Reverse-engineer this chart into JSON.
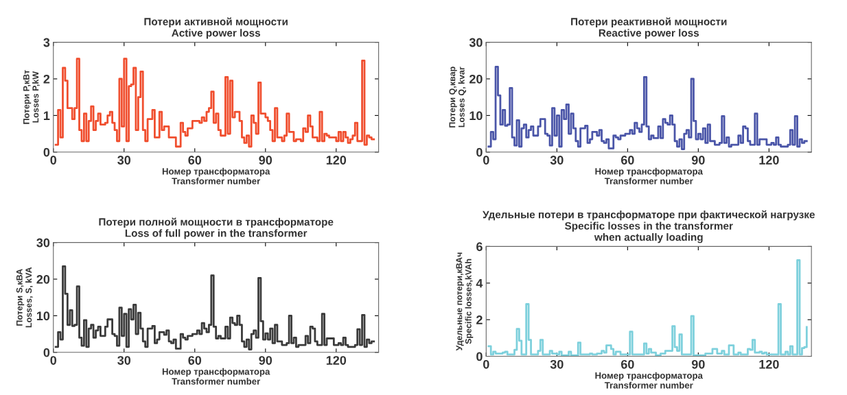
{
  "chart_data": [
    {
      "type": "step",
      "title": "Потери активной мощности\nActive power loss",
      "xlabel": "Номер трансформатора\nTransformer number",
      "ylabel": "Потери P,кВт\nLosses P,kW",
      "xlim": [
        0,
        138
      ],
      "ylim": [
        0,
        3
      ],
      "xticks": [
        0,
        30,
        60,
        90,
        120
      ],
      "yticks": [
        0,
        1,
        2,
        3
      ],
      "grid": false,
      "x": [
        1,
        2,
        3,
        4,
        5,
        6,
        8,
        9,
        10,
        11,
        12,
        13,
        14,
        15,
        16,
        17,
        18,
        19,
        20,
        22,
        23,
        24,
        25,
        26,
        27,
        28,
        29,
        30,
        31,
        32,
        33,
        34,
        35,
        36,
        37,
        38,
        39,
        40,
        42,
        43,
        45,
        46,
        47,
        49,
        52,
        54,
        55,
        56,
        57,
        59,
        62,
        63,
        64,
        65,
        66,
        67,
        68,
        69,
        70,
        71,
        73,
        74,
        75,
        76,
        77,
        79,
        80,
        81,
        82,
        83,
        84,
        85,
        86,
        87,
        88,
        90,
        91,
        92,
        93,
        94,
        95,
        97,
        98,
        99,
        100,
        102,
        103,
        105,
        106,
        107,
        108,
        109,
        110,
        112,
        113,
        114,
        115,
        116,
        117,
        120,
        121,
        122,
        123,
        124,
        125,
        126,
        127,
        128,
        129,
        131,
        132,
        133,
        134,
        135,
        136
      ],
      "series": [
        {
          "color": "#f04e2e",
          "values": [
            0.2,
            1.15,
            0.4,
            2.3,
            1.95,
            1.2,
            0.9,
            1.2,
            2.55,
            0.6,
            0.3,
            1.05,
            0.3,
            0.85,
            1.25,
            0.6,
            0.85,
            1.05,
            0.75,
            0.8,
            1.0,
            1.1,
            0.8,
            0.6,
            0.3,
            2.0,
            0.7,
            2.55,
            0.3,
            1.8,
            1.85,
            2.3,
            0.6,
            1.5,
            2.2,
            0.6,
            0.3,
            0.9,
            1.15,
            0.4,
            1.1,
            0.6,
            0.7,
            0.4,
            0.15,
            0.8,
            0.55,
            0.45,
            0.65,
            0.85,
            0.8,
            0.95,
            0.85,
            1.1,
            1.2,
            1.65,
            0.8,
            1.05,
            0.6,
            0.45,
            2.05,
            0.5,
            1.95,
            0.95,
            1.1,
            0.85,
            0.4,
            0.25,
            0.45,
            0.15,
            1.0,
            0.8,
            0.5,
            1.9,
            1.05,
            0.95,
            0.85,
            0.6,
            0.3,
            1.2,
            0.4,
            0.3,
            0.45,
            1.05,
            0.55,
            0.3,
            0.35,
            0.3,
            0.65,
            0.55,
            1.0,
            0.7,
            0.4,
            0.3,
            1.1,
            0.3,
            0.5,
            0.45,
            0.4,
            0.3,
            0.55,
            0.3,
            0.55,
            0.4,
            0.25,
            0.35,
            0.45,
            0.8,
            0.3,
            2.5,
            0.2,
            0.45,
            0.4,
            0.35,
            0.35
          ]
        }
      ]
    },
    {
      "type": "step",
      "title": "Потери реактивной мощности\nReactive power loss",
      "xlabel": "Номер трансформатора\nTransformer number",
      "ylabel": "Потери Q,квар\nLosses Q, kvar",
      "xlim": [
        0,
        138
      ],
      "ylim": [
        0,
        30
      ],
      "xticks": [
        0,
        30,
        60,
        90,
        120
      ],
      "yticks": [
        0,
        10,
        20,
        30
      ],
      "grid": false,
      "x": [
        1,
        2,
        3,
        4,
        5,
        6,
        7,
        8,
        9,
        10,
        11,
        12,
        13,
        14,
        15,
        16,
        17,
        18,
        19,
        20,
        22,
        23,
        25,
        26,
        27,
        28,
        29,
        30,
        31,
        32,
        33,
        34,
        35,
        36,
        37,
        38,
        39,
        40,
        42,
        43,
        44,
        45,
        47,
        48,
        49,
        50,
        51,
        52,
        54,
        55,
        56,
        57,
        59,
        61,
        62,
        63,
        64,
        65,
        66,
        67,
        68,
        69,
        70,
        71,
        73,
        74,
        75,
        76,
        77,
        78,
        79,
        80,
        81,
        82,
        83,
        84,
        85,
        86,
        87,
        88,
        89,
        90,
        91,
        92,
        93,
        94,
        95,
        97,
        99,
        100,
        101,
        102,
        103,
        104,
        106,
        107,
        108,
        109,
        110,
        111,
        112,
        114,
        115,
        116,
        119,
        121,
        122,
        123,
        124,
        125,
        128,
        129,
        130,
        131,
        132,
        133,
        134,
        135,
        136
      ],
      "series": [
        {
          "color": "#4a55a8",
          "values": [
            1.5,
            5.5,
            3.5,
            23.3,
            15.5,
            7.5,
            11.5,
            7.2,
            7.5,
            17.5,
            4.0,
            1.8,
            8.7,
            1.5,
            6.5,
            7.5,
            4.0,
            6.0,
            7.0,
            4.5,
            7.0,
            9.0,
            5.0,
            4.5,
            1.8,
            12.0,
            4.5,
            10.0,
            1.5,
            11.5,
            9.0,
            13.0,
            5.0,
            10.5,
            6.5,
            3.0,
            1.5,
            6.5,
            7.2,
            2.5,
            3.5,
            5.5,
            4.5,
            6.0,
            3.0,
            2.5,
            3.5,
            1.0,
            4.5,
            4.0,
            3.5,
            4.5,
            5.0,
            6.0,
            5.0,
            8.0,
            6.5,
            5.5,
            7.5,
            20.5,
            7.0,
            3.5,
            4.5,
            3.8,
            7.0,
            3.8,
            9.0,
            8.0,
            7.5,
            10.0,
            7.5,
            3.0,
            1.5,
            3.5,
            0.8,
            5.0,
            6.0,
            4.0,
            20.0,
            8.5,
            3.5,
            5.0,
            3.5,
            6.5,
            2.5,
            7.5,
            3.0,
            2.0,
            2.5,
            9.8,
            2.5,
            4.0,
            1.5,
            2.0,
            2.0,
            4.5,
            2.5,
            7.0,
            6.5,
            3.0,
            2.0,
            10.5,
            2.0,
            3.5,
            2.0,
            2.5,
            2.0,
            4.0,
            2.0,
            1.5,
            2.0,
            6.0,
            2.0,
            9.8,
            1.5,
            3.5,
            2.5,
            3.0,
            3.0
          ]
        }
      ]
    },
    {
      "type": "step",
      "title": "Потери полной мощности в трансформаторе\nLoss of full power in the transformer",
      "xlabel": "Номер трансформатора\nTransformer number",
      "ylabel": "Потери S,кВА\nLosses, S, kVA",
      "xlim": [
        0,
        138
      ],
      "ylim": [
        0,
        30
      ],
      "xticks": [
        0,
        30,
        60,
        90,
        120
      ],
      "yticks": [
        0,
        10,
        20,
        30
      ],
      "grid": false,
      "x": [
        1,
        2,
        3,
        4,
        5,
        6,
        7,
        8,
        9,
        10,
        11,
        12,
        13,
        14,
        15,
        16,
        17,
        18,
        19,
        20,
        22,
        23,
        25,
        26,
        27,
        28,
        29,
        30,
        31,
        32,
        33,
        34,
        35,
        36,
        37,
        38,
        39,
        40,
        42,
        43,
        44,
        45,
        47,
        48,
        49,
        50,
        51,
        52,
        54,
        55,
        56,
        57,
        59,
        61,
        62,
        63,
        64,
        65,
        66,
        67,
        68,
        69,
        70,
        71,
        73,
        74,
        75,
        76,
        77,
        78,
        79,
        80,
        81,
        82,
        83,
        84,
        85,
        86,
        87,
        88,
        89,
        90,
        91,
        92,
        93,
        94,
        95,
        97,
        99,
        100,
        101,
        102,
        103,
        104,
        106,
        107,
        108,
        109,
        110,
        111,
        112,
        114,
        115,
        116,
        119,
        121,
        122,
        123,
        124,
        125,
        128,
        129,
        130,
        131,
        132,
        133,
        134,
        135,
        136
      ],
      "series": [
        {
          "color": "#3a3a3a",
          "values": [
            1.5,
            5.5,
            3.5,
            23.5,
            16.0,
            7.5,
            11.5,
            7.2,
            7.5,
            18.0,
            4.0,
            1.8,
            8.8,
            1.5,
            6.5,
            7.5,
            4.0,
            6.0,
            7.0,
            4.5,
            7.0,
            9.0,
            5.0,
            4.5,
            1.8,
            12.2,
            4.5,
            10.5,
            1.5,
            11.8,
            9.0,
            13.0,
            5.0,
            10.8,
            6.5,
            3.0,
            1.5,
            6.5,
            7.2,
            2.5,
            3.5,
            5.5,
            4.8,
            6.0,
            3.0,
            2.5,
            3.5,
            1.0,
            5.0,
            4.0,
            3.5,
            4.5,
            5.0,
            6.0,
            5.0,
            8.0,
            6.5,
            5.5,
            7.5,
            21.0,
            7.0,
            3.8,
            4.5,
            3.8,
            7.0,
            3.8,
            9.5,
            8.0,
            7.5,
            10.0,
            7.5,
            3.0,
            1.5,
            3.5,
            0.8,
            5.0,
            6.0,
            4.0,
            20.3,
            8.5,
            3.5,
            5.2,
            3.5,
            6.5,
            2.5,
            7.5,
            3.0,
            2.0,
            2.5,
            10.0,
            2.5,
            4.0,
            1.5,
            2.0,
            2.0,
            4.5,
            2.5,
            7.0,
            6.5,
            3.0,
            2.0,
            10.5,
            2.0,
            3.8,
            2.0,
            2.5,
            2.0,
            4.0,
            2.0,
            1.5,
            2.0,
            6.3,
            2.0,
            10.2,
            1.5,
            3.5,
            2.5,
            3.0,
            3.0
          ]
        }
      ]
    },
    {
      "type": "step",
      "title": "Удельные потери в трансформаторе при фактической нагрузке\nSpecific losses in the transformer\nwhen actually loading",
      "xlabel": "Номер трансформатора\nTransformer number",
      "ylabel": "Удельные потери,кВАч\nSpecific losses,kVAh",
      "xlim": [
        0,
        138
      ],
      "ylim": [
        0,
        6
      ],
      "xticks": [
        0,
        30,
        60,
        90,
        120
      ],
      "yticks": [
        0,
        2,
        4,
        6
      ],
      "grid": false,
      "x": [
        1,
        2,
        3,
        4,
        7,
        8,
        9,
        12,
        13,
        14,
        15,
        17,
        18,
        19,
        22,
        23,
        24,
        27,
        28,
        30,
        31,
        32,
        35,
        36,
        39,
        40,
        44,
        45,
        47,
        49,
        50,
        51,
        53,
        54,
        55,
        57,
        61,
        62,
        67,
        68,
        69,
        70,
        72,
        74,
        76,
        78,
        79,
        80,
        81,
        82,
        83,
        87,
        88,
        93,
        96,
        98,
        100,
        101,
        103,
        105,
        107,
        108,
        111,
        112,
        113,
        114,
        116,
        117,
        118,
        119,
        124,
        125,
        127,
        128,
        129,
        130,
        132,
        133,
        134,
        135,
        136
      ],
      "series": [
        {
          "color": "#7dd0dc",
          "values": [
            0.55,
            0.1,
            0.25,
            0.15,
            0.2,
            0.25,
            0.1,
            0.35,
            1.5,
            0.85,
            0.1,
            2.85,
            0.9,
            0.1,
            0.3,
            0.9,
            0.1,
            0.3,
            0.15,
            0.1,
            0.25,
            0.05,
            0.25,
            0.05,
            0.75,
            0.1,
            0.15,
            0.1,
            0.15,
            0.3,
            0.2,
            0.6,
            0.4,
            0.1,
            0.25,
            0.1,
            1.35,
            0.1,
            0.7,
            0.15,
            0.4,
            0.2,
            0.05,
            0.15,
            0.3,
            0.3,
            1.65,
            0.5,
            0.3,
            1.2,
            0.1,
            2.2,
            0.05,
            0.15,
            0.4,
            0.15,
            0.3,
            0.1,
            0.6,
            0.1,
            0.2,
            0.1,
            0.4,
            0.35,
            0.9,
            0.2,
            0.25,
            0.15,
            0.2,
            0.1,
            2.85,
            0.1,
            0.25,
            0.1,
            0.55,
            0.1,
            5.25,
            0.1,
            0.45,
            0.5,
            1.6
          ]
        }
      ]
    }
  ]
}
